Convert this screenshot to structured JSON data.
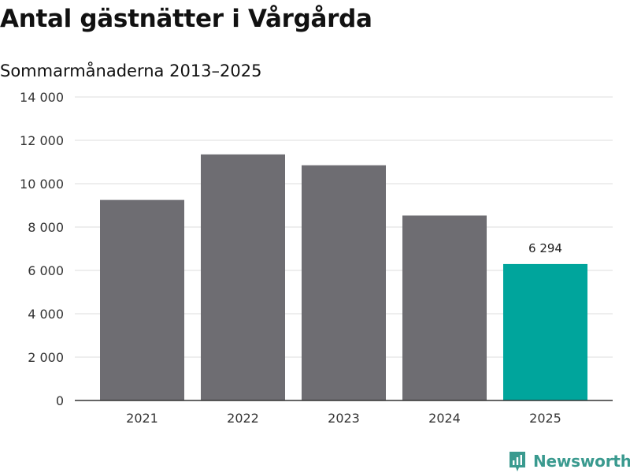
{
  "title": "Antal gästnätter i Vårgårda",
  "subtitle": "Sommarmånaderna 2013–2025",
  "brand": "Newsworthy",
  "colors": {
    "bar": "#6e6d72",
    "highlight": "#00a59c",
    "grid": "#dddddd",
    "axis": "#333333"
  },
  "chart_data": {
    "type": "bar",
    "categories": [
      "2021",
      "2022",
      "2023",
      "2024",
      "2025"
    ],
    "values": [
      9250,
      11350,
      10850,
      8530,
      6294
    ],
    "ylim": [
      0,
      14000
    ],
    "yticks": [
      "0",
      "2 000",
      "4 000",
      "6 000",
      "8 000",
      "10 000",
      "12 000",
      "14 000"
    ],
    "ytick_values": [
      0,
      2000,
      4000,
      6000,
      8000,
      10000,
      12000,
      14000
    ],
    "highlight_index": 4,
    "data_labels": [
      {
        "index": 4,
        "text": "6 294"
      }
    ],
    "grid": true,
    "xlabel": "",
    "ylabel": ""
  }
}
